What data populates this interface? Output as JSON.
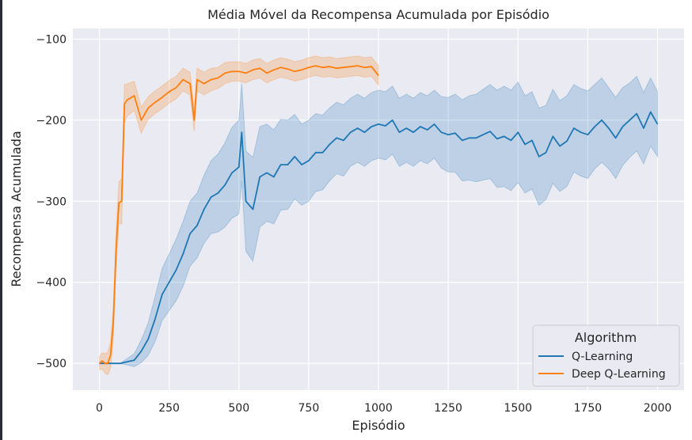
{
  "chart_data": {
    "type": "line",
    "title": "Média Móvel da Recompensa Acumulada por Episódio",
    "xlabel": "Episódio",
    "ylabel": "Recompensa Acumulada",
    "xlim": [
      -95,
      2095
    ],
    "ylim": [
      -533,
      -87
    ],
    "xticks": [
      0,
      250,
      500,
      750,
      1000,
      1250,
      1500,
      1750,
      2000
    ],
    "yticks": [
      -500,
      -400,
      -300,
      -200,
      -100
    ],
    "xtick_labels": [
      "0",
      "250",
      "500",
      "750",
      "1000",
      "1250",
      "1500",
      "1750",
      "2000"
    ],
    "ytick_labels": [
      "−500",
      "−400",
      "−300",
      "−200",
      "−100"
    ],
    "grid": true,
    "legend": {
      "title": "Algorithm",
      "position": "lower-right"
    },
    "series": [
      {
        "name": "Q-Learning",
        "color": "#1f77b4",
        "x": [
          0,
          25,
          50,
          75,
          100,
          125,
          150,
          175,
          200,
          225,
          250,
          275,
          300,
          325,
          350,
          375,
          400,
          425,
          450,
          475,
          500,
          510,
          525,
          550,
          575,
          600,
          625,
          650,
          675,
          700,
          725,
          750,
          775,
          800,
          825,
          850,
          875,
          900,
          925,
          950,
          975,
          1000,
          1025,
          1050,
          1075,
          1100,
          1125,
          1150,
          1175,
          1200,
          1225,
          1250,
          1275,
          1300,
          1325,
          1350,
          1375,
          1400,
          1425,
          1450,
          1475,
          1500,
          1525,
          1550,
          1575,
          1600,
          1625,
          1650,
          1675,
          1700,
          1725,
          1750,
          1775,
          1800,
          1825,
          1850,
          1875,
          1900,
          1925,
          1950,
          1975,
          2000
        ],
        "y": [
          -500,
          -500,
          -500,
          -500,
          -498,
          -496,
          -485,
          -470,
          -445,
          -415,
          -400,
          -385,
          -365,
          -340,
          -330,
          -310,
          -295,
          -290,
          -280,
          -265,
          -258,
          -215,
          -300,
          -310,
          -270,
          -265,
          -270,
          -255,
          -255,
          -245,
          -255,
          -250,
          -240,
          -240,
          -230,
          -222,
          -225,
          -215,
          -210,
          -215,
          -208,
          -205,
          -207,
          -200,
          -215,
          -210,
          -215,
          -208,
          -212,
          -205,
          -215,
          -218,
          -216,
          -225,
          -222,
          -222,
          -218,
          -214,
          -223,
          -220,
          -225,
          -215,
          -230,
          -225,
          -245,
          -240,
          -220,
          -232,
          -226,
          -210,
          -215,
          -218,
          -208,
          -200,
          -210,
          -222,
          -208,
          -200,
          -192,
          -210,
          -190,
          -205
        ],
        "ci": [
          0,
          0,
          0,
          0,
          4,
          8,
          14,
          20,
          28,
          32,
          35,
          38,
          40,
          40,
          40,
          42,
          45,
          48,
          52,
          56,
          58,
          60,
          62,
          64,
          62,
          60,
          58,
          56,
          55,
          52,
          50,
          50,
          48,
          46,
          45,
          44,
          44,
          42,
          42,
          42,
          42,
          42,
          42,
          42,
          42,
          42,
          42,
          42,
          42,
          42,
          44,
          46,
          48,
          50,
          52,
          54,
          56,
          58,
          60,
          62,
          62,
          62,
          60,
          60,
          60,
          58,
          58,
          56,
          56,
          54,
          54,
          54,
          52,
          52,
          50,
          50,
          48,
          46,
          46,
          44,
          42,
          40
        ]
      },
      {
        "name": "Deep Q-Learning",
        "color": "#ff7f0e",
        "x": [
          0,
          10,
          20,
          30,
          40,
          50,
          60,
          70,
          80,
          90,
          100,
          125,
          150,
          175,
          200,
          225,
          250,
          275,
          300,
          325,
          340,
          350,
          375,
          400,
          425,
          450,
          475,
          500,
          525,
          550,
          575,
          600,
          625,
          650,
          675,
          700,
          725,
          750,
          775,
          800,
          825,
          850,
          875,
          900,
          925,
          950,
          975,
          1000
        ],
        "y": [
          -500,
          -497,
          -500,
          -500,
          -490,
          -450,
          -360,
          -302,
          -300,
          -180,
          -175,
          -170,
          -200,
          -185,
          -178,
          -172,
          -165,
          -160,
          -150,
          -155,
          -200,
          -150,
          -155,
          -150,
          -148,
          -142,
          -140,
          -140,
          -142,
          -138,
          -136,
          -142,
          -138,
          -135,
          -137,
          -140,
          -138,
          -135,
          -133,
          -135,
          -134,
          -136,
          -135,
          -134,
          -133,
          -135,
          -134,
          -145
        ],
        "ci": [
          8,
          10,
          12,
          14,
          16,
          20,
          24,
          26,
          28,
          24,
          20,
          18,
          16,
          14,
          14,
          14,
          14,
          14,
          14,
          14,
          14,
          14,
          14,
          14,
          13,
          13,
          12,
          12,
          12,
          12,
          12,
          12,
          12,
          12,
          12,
          12,
          12,
          12,
          12,
          12,
          12,
          12,
          12,
          12,
          12,
          12,
          12,
          12
        ]
      }
    ]
  }
}
